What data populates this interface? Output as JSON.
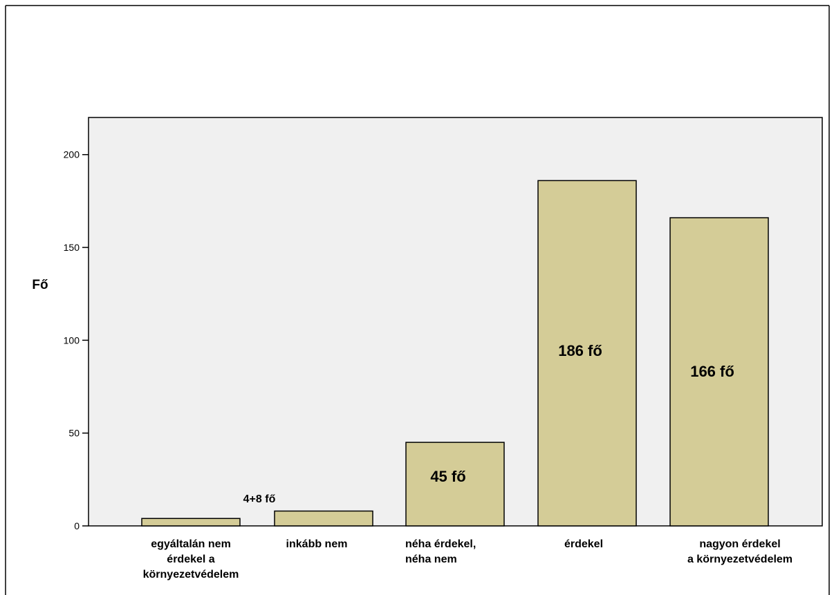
{
  "chart_data": {
    "type": "bar",
    "categories": [
      [
        "egyáltalán nem",
        "érdekel a",
        "környezetvédelem"
      ],
      [
        "inkább nem"
      ],
      [
        "néha érdekel,",
        "néha nem"
      ],
      [
        "érdekel"
      ],
      [
        "nagyon érdekel",
        "a környezetvédelem"
      ]
    ],
    "values": [
      4,
      8,
      45,
      186,
      166
    ],
    "data_labels": [
      "",
      "",
      "45 fő",
      "186 fő",
      "166 fő"
    ],
    "annotation": "4+8 fő",
    "ylabel": "Fő",
    "xlabel": "",
    "yticks": [
      "0",
      "50",
      "100",
      "150",
      "200"
    ],
    "ylim": [
      0,
      220
    ],
    "grid": false,
    "colors": {
      "bar_fill": "#d4cc97",
      "plot_background": "#f0f0f0",
      "stroke": "#000000"
    }
  }
}
